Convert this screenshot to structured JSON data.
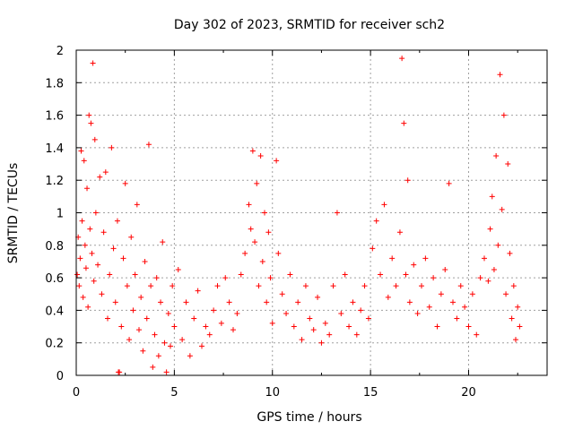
{
  "chart_data": {
    "type": "scatter",
    "title": "Day 302 of 2023, SRMTID for receiver sch2",
    "xlabel": "GPS time / hours",
    "ylabel": "SRMTID / TECUs",
    "xlim": [
      0,
      24
    ],
    "ylim": [
      0,
      2
    ],
    "x_ticks": [
      0,
      5,
      10,
      15,
      20
    ],
    "y_ticks": [
      0,
      0.2,
      0.4,
      0.6,
      0.8,
      1,
      1.2,
      1.4,
      1.6,
      1.8,
      2
    ],
    "x_tick_labels": [
      "0",
      "5",
      "10",
      "15",
      "20"
    ],
    "y_tick_labels": [
      "0",
      "0.2",
      "0.4",
      "0.6",
      "0.8",
      "1",
      "1.2",
      "1.4",
      "1.6",
      "1.8",
      "2"
    ],
    "grid": true,
    "marker": "+",
    "color": "#ff0000",
    "series": [
      {
        "name": "SRMTID",
        "points": [
          [
            0.05,
            0.62
          ],
          [
            0.1,
            0.85
          ],
          [
            0.15,
            0.55
          ],
          [
            0.2,
            0.72
          ],
          [
            0.25,
            1.38
          ],
          [
            0.3,
            0.95
          ],
          [
            0.35,
            0.48
          ],
          [
            0.4,
            1.32
          ],
          [
            0.45,
            0.8
          ],
          [
            0.5,
            0.66
          ],
          [
            0.55,
            1.15
          ],
          [
            0.6,
            0.42
          ],
          [
            0.65,
            1.6
          ],
          [
            0.7,
            0.9
          ],
          [
            0.75,
            1.55
          ],
          [
            0.8,
            0.75
          ],
          [
            0.85,
            1.92
          ],
          [
            0.9,
            0.58
          ],
          [
            0.95,
            1.45
          ],
          [
            1.0,
            1.0
          ],
          [
            1.1,
            0.68
          ],
          [
            1.2,
            1.22
          ],
          [
            1.3,
            0.5
          ],
          [
            1.4,
            0.88
          ],
          [
            1.5,
            1.25
          ],
          [
            1.6,
            0.35
          ],
          [
            1.7,
            0.62
          ],
          [
            1.8,
            1.4
          ],
          [
            1.9,
            0.78
          ],
          [
            2.0,
            0.45
          ],
          [
            2.1,
            0.95
          ],
          [
            2.15,
            0.02
          ],
          [
            2.2,
            0.02
          ],
          [
            2.3,
            0.3
          ],
          [
            2.4,
            0.72
          ],
          [
            2.5,
            1.18
          ],
          [
            2.6,
            0.55
          ],
          [
            2.7,
            0.22
          ],
          [
            2.8,
            0.85
          ],
          [
            2.9,
            0.4
          ],
          [
            3.0,
            0.62
          ],
          [
            3.1,
            1.05
          ],
          [
            3.2,
            0.28
          ],
          [
            3.3,
            0.48
          ],
          [
            3.4,
            0.15
          ],
          [
            3.5,
            0.7
          ],
          [
            3.6,
            0.35
          ],
          [
            3.7,
            1.42
          ],
          [
            3.8,
            0.55
          ],
          [
            3.9,
            0.05
          ],
          [
            4.0,
            0.25
          ],
          [
            4.1,
            0.6
          ],
          [
            4.2,
            0.12
          ],
          [
            4.3,
            0.45
          ],
          [
            4.4,
            0.82
          ],
          [
            4.5,
            0.2
          ],
          [
            4.6,
            0.02
          ],
          [
            4.7,
            0.38
          ],
          [
            4.8,
            0.18
          ],
          [
            4.9,
            0.55
          ],
          [
            5.0,
            0.3
          ],
          [
            5.2,
            0.65
          ],
          [
            5.4,
            0.22
          ],
          [
            5.6,
            0.45
          ],
          [
            5.8,
            0.12
          ],
          [
            6.0,
            0.35
          ],
          [
            6.2,
            0.52
          ],
          [
            6.4,
            0.18
          ],
          [
            6.6,
            0.3
          ],
          [
            6.8,
            0.25
          ],
          [
            7.0,
            0.4
          ],
          [
            7.2,
            0.55
          ],
          [
            7.4,
            0.32
          ],
          [
            7.6,
            0.6
          ],
          [
            7.8,
            0.45
          ],
          [
            8.0,
            0.28
          ],
          [
            8.2,
            0.38
          ],
          [
            8.4,
            0.62
          ],
          [
            8.6,
            0.75
          ],
          [
            8.8,
            1.05
          ],
          [
            8.9,
            0.9
          ],
          [
            9.0,
            1.38
          ],
          [
            9.1,
            0.82
          ],
          [
            9.2,
            1.18
          ],
          [
            9.3,
            0.55
          ],
          [
            9.4,
            1.35
          ],
          [
            9.5,
            0.7
          ],
          [
            9.6,
            1.0
          ],
          [
            9.7,
            0.45
          ],
          [
            9.8,
            0.88
          ],
          [
            9.9,
            0.6
          ],
          [
            10.0,
            0.32
          ],
          [
            10.2,
            1.32
          ],
          [
            10.3,
            0.75
          ],
          [
            10.5,
            0.5
          ],
          [
            10.7,
            0.38
          ],
          [
            10.9,
            0.62
          ],
          [
            11.1,
            0.3
          ],
          [
            11.3,
            0.45
          ],
          [
            11.5,
            0.22
          ],
          [
            11.7,
            0.55
          ],
          [
            11.9,
            0.35
          ],
          [
            12.1,
            0.28
          ],
          [
            12.3,
            0.48
          ],
          [
            12.5,
            0.2
          ],
          [
            12.7,
            0.32
          ],
          [
            12.9,
            0.25
          ],
          [
            13.1,
            0.55
          ],
          [
            13.3,
            1.0
          ],
          [
            13.5,
            0.38
          ],
          [
            13.7,
            0.62
          ],
          [
            13.9,
            0.3
          ],
          [
            14.1,
            0.45
          ],
          [
            14.3,
            0.25
          ],
          [
            14.5,
            0.4
          ],
          [
            14.7,
            0.55
          ],
          [
            14.9,
            0.35
          ],
          [
            15.1,
            0.78
          ],
          [
            15.3,
            0.95
          ],
          [
            15.5,
            0.62
          ],
          [
            15.7,
            1.05
          ],
          [
            15.9,
            0.48
          ],
          [
            16.1,
            0.72
          ],
          [
            16.3,
            0.55
          ],
          [
            16.5,
            0.88
          ],
          [
            16.6,
            1.95
          ],
          [
            16.7,
            1.55
          ],
          [
            16.8,
            0.62
          ],
          [
            16.9,
            1.2
          ],
          [
            17.0,
            0.45
          ],
          [
            17.2,
            0.68
          ],
          [
            17.4,
            0.38
          ],
          [
            17.6,
            0.55
          ],
          [
            17.8,
            0.72
          ],
          [
            18.0,
            0.42
          ],
          [
            18.2,
            0.6
          ],
          [
            18.4,
            0.3
          ],
          [
            18.6,
            0.5
          ],
          [
            18.8,
            0.65
          ],
          [
            19.0,
            1.18
          ],
          [
            19.2,
            0.45
          ],
          [
            19.4,
            0.35
          ],
          [
            19.6,
            0.55
          ],
          [
            19.8,
            0.42
          ],
          [
            20.0,
            0.3
          ],
          [
            20.2,
            0.5
          ],
          [
            20.4,
            0.25
          ],
          [
            20.6,
            0.6
          ],
          [
            20.8,
            0.72
          ],
          [
            21.0,
            0.58
          ],
          [
            21.1,
            0.9
          ],
          [
            21.2,
            1.1
          ],
          [
            21.3,
            0.65
          ],
          [
            21.4,
            1.35
          ],
          [
            21.5,
            0.8
          ],
          [
            21.6,
            1.85
          ],
          [
            21.7,
            1.02
          ],
          [
            21.8,
            1.6
          ],
          [
            21.9,
            0.5
          ],
          [
            22.0,
            1.3
          ],
          [
            22.1,
            0.75
          ],
          [
            22.2,
            0.35
          ],
          [
            22.3,
            0.55
          ],
          [
            22.4,
            0.22
          ],
          [
            22.5,
            0.42
          ],
          [
            22.6,
            0.3
          ]
        ]
      }
    ]
  }
}
